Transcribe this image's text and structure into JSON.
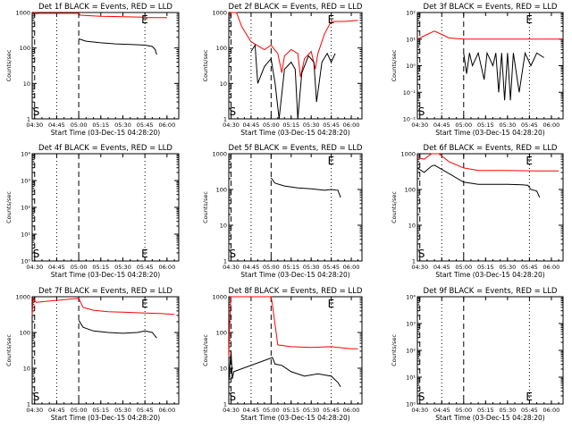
{
  "chart_data": [
    {
      "type": "line",
      "title": "Det 1f BLACK = Events, RED = LLD",
      "xlabel": "Start Time (03-Dec-15 04:28:20)",
      "ylabel": "Counts/sec",
      "x_ticks": [
        "04:30",
        "04:45",
        "05:00",
        "05:15",
        "05:30",
        "05:45",
        "06:00"
      ],
      "xlim": [
        "04:28:20",
        "06:08:00"
      ],
      "ylim": [
        1,
        1000
      ],
      "y_scale": "log",
      "y_ticks": [
        "1",
        "10",
        "100",
        "1000"
      ],
      "markers": {
        "S": "04:30",
        "E": "05:45"
      },
      "vlines_dashed": [
        "04:30",
        "05:00"
      ],
      "vlines_dotted": [
        "04:45",
        "05:45"
      ],
      "series": [
        {
          "color": "#ff0000",
          "points": [
            [
              "04:28:20",
              900
            ],
            [
              "04:30",
              1000
            ],
            [
              "04:31",
              920
            ],
            [
              "04:33",
              950
            ],
            [
              "05:00",
              950
            ],
            [
              "05:01",
              840
            ],
            [
              "05:15",
              780
            ],
            [
              "05:30",
              760
            ],
            [
              "05:45",
              740
            ],
            [
              "05:46",
              720
            ],
            [
              "06:00",
              720
            ]
          ]
        },
        {
          "color": "#000000",
          "points": [
            [
              "05:00",
              180
            ],
            [
              "05:05",
              155
            ],
            [
              "05:15",
              140
            ],
            [
              "05:25",
              130
            ],
            [
              "05:35",
              125
            ],
            [
              "05:45",
              120
            ],
            [
              "05:50",
              110
            ],
            [
              "05:52",
              90
            ],
            [
              "05:53",
              65
            ]
          ]
        }
      ]
    },
    {
      "type": "line",
      "title": "Det 2f BLACK = Events, RED = LLD",
      "xlabel": "Start Time (03-Dec-15 04:28:20)",
      "ylabel": "Counts/sec",
      "x_ticks": [
        "04:30",
        "04:45",
        "05:00",
        "05:15",
        "05:30",
        "05:45",
        "06:00"
      ],
      "xlim": [
        "04:28:20",
        "06:08:00"
      ],
      "ylim": [
        1,
        1000
      ],
      "y_scale": "log",
      "y_ticks": [
        "1",
        "10",
        "100",
        "1000"
      ],
      "markers": {
        "S": "04:30",
        "E": "05:45"
      },
      "vlines_dashed": [
        "04:30",
        "05:00"
      ],
      "vlines_dotted": [
        "04:45",
        "05:45"
      ],
      "series": [
        {
          "color": "#ff0000",
          "points": [
            [
              "04:28:20",
              800
            ],
            [
              "04:30",
              1000
            ],
            [
              "04:34",
              1000
            ],
            [
              "04:38",
              400
            ],
            [
              "04:45",
              150
            ],
            [
              "04:55",
              90
            ],
            [
              "05:00",
              120
            ],
            [
              "05:05",
              70
            ],
            [
              "05:08",
              20
            ],
            [
              "05:10",
              60
            ],
            [
              "05:15",
              90
            ],
            [
              "05:20",
              70
            ],
            [
              "05:22",
              15
            ],
            [
              "05:25",
              50
            ],
            [
              "05:30",
              80
            ],
            [
              "05:33",
              25
            ],
            [
              "05:35",
              70
            ],
            [
              "05:40",
              250
            ],
            [
              "05:45",
              560
            ],
            [
              "05:55",
              560
            ],
            [
              "06:05",
              600
            ]
          ]
        },
        {
          "color": "#000000",
          "points": [
            [
              "04:45",
              80
            ],
            [
              "04:48",
              120
            ],
            [
              "04:50",
              10
            ],
            [
              "04:55",
              30
            ],
            [
              "05:00",
              50
            ],
            [
              "05:03",
              10
            ],
            [
              "05:06",
              1
            ],
            [
              "05:10",
              25
            ],
            [
              "05:15",
              40
            ],
            [
              "05:18",
              25
            ],
            [
              "05:20",
              1
            ],
            [
              "05:23",
              20
            ],
            [
              "05:28",
              60
            ],
            [
              "05:32",
              40
            ],
            [
              "05:34",
              3
            ],
            [
              "05:38",
              40
            ],
            [
              "05:42",
              70
            ],
            [
              "05:45",
              40
            ],
            [
              "05:48",
              70
            ]
          ]
        }
      ]
    },
    {
      "type": "line",
      "title": "Det 3f BLACK = Events, RED = LLD",
      "xlabel": "Start Time (03-Dec-15 04:28:20)",
      "ylabel": "Counts/sec",
      "x_ticks": [
        "04:30",
        "04:45",
        "05:00",
        "05:15",
        "05:30",
        "05:45",
        "06:00"
      ],
      "xlim": [
        "04:28:20",
        "06:08:00"
      ],
      "ylim": [
        0.01,
        100
      ],
      "y_scale": "log",
      "y_ticks": [
        "10⁻²",
        "10⁻¹",
        "10⁰",
        "10¹",
        "10²"
      ],
      "markers": {
        "S": "04:30",
        "E": "05:45"
      },
      "vlines_dashed": [
        "04:30",
        "05:00"
      ],
      "vlines_dotted": [
        "04:45",
        "05:45"
      ],
      "series": [
        {
          "color": "#ff0000",
          "points": [
            [
              "04:28:20",
              10
            ],
            [
              "04:35",
              15
            ],
            [
              "04:40",
              20
            ],
            [
              "04:45",
              15
            ],
            [
              "04:50",
              11
            ],
            [
              "05:00",
              10
            ],
            [
              "06:08:00",
              10
            ]
          ]
        },
        {
          "color": "#000000",
          "points": [
            [
              "05:00",
              3
            ],
            [
              "05:02",
              0.5
            ],
            [
              "05:04",
              3
            ],
            [
              "05:06",
              1
            ],
            [
              "05:10",
              3
            ],
            [
              "05:14",
              0.3
            ],
            [
              "05:16",
              3
            ],
            [
              "05:20",
              1
            ],
            [
              "05:22",
              3
            ],
            [
              "05:24",
              0.1
            ],
            [
              "05:26",
              3
            ],
            [
              "05:28",
              0.05
            ],
            [
              "05:30",
              3
            ],
            [
              "05:32",
              0.05
            ],
            [
              "05:34",
              3
            ],
            [
              "05:38",
              0.1
            ],
            [
              "05:42",
              3
            ],
            [
              "05:46",
              1
            ],
            [
              "05:50",
              3
            ],
            [
              "05:55",
              2
            ]
          ]
        }
      ]
    },
    {
      "type": "line",
      "title": "Det 4f BLACK = Events, RED = LLD",
      "xlabel": "Start Time (03-Dec-15 04:28:20)",
      "ylabel": "Counts/sec",
      "x_ticks": [
        "04:30",
        "04:45",
        "05:00",
        "05:15",
        "05:30",
        "05:45",
        "06:00"
      ],
      "xlim": [
        "04:28:20",
        "06:08:00"
      ],
      "ylim": [
        1,
        10000
      ],
      "y_scale": "log",
      "y_ticks": [
        "10⁰",
        "10¹",
        "10²",
        "10³",
        "10⁴"
      ],
      "markers": {
        "S": "04:30",
        "E": "05:45"
      },
      "vlines_dashed": [
        "04:30",
        "05:00"
      ],
      "vlines_dotted": [
        "04:45",
        "05:45"
      ],
      "series": []
    },
    {
      "type": "line",
      "title": "Det 5f BLACK = Events, RED = LLD",
      "xlabel": "Start Time (03-Dec-15 04:28:20)",
      "ylabel": "Counts/sec",
      "x_ticks": [
        "04:30",
        "04:45",
        "05:00",
        "05:15",
        "05:30",
        "05:45",
        "06:00"
      ],
      "xlim": [
        "04:28:20",
        "06:08:00"
      ],
      "ylim": [
        1,
        1000
      ],
      "y_scale": "log",
      "y_ticks": [
        "1",
        "10",
        "100",
        "1000"
      ],
      "markers": {
        "S": "04:30",
        "E": "05:45"
      },
      "vlines_dashed": [
        "04:30",
        "05:00"
      ],
      "vlines_dotted": [
        "04:45",
        "05:45"
      ],
      "series": [
        {
          "color": "#000000",
          "points": [
            [
              "05:00",
              210
            ],
            [
              "05:03",
              150
            ],
            [
              "05:10",
              125
            ],
            [
              "05:20",
              110
            ],
            [
              "05:30",
              105
            ],
            [
              "05:40",
              95
            ],
            [
              "05:45",
              100
            ],
            [
              "05:50",
              95
            ],
            [
              "05:52",
              60
            ]
          ]
        }
      ]
    },
    {
      "type": "line",
      "title": "Det 6f BLACK = Events, RED = LLD",
      "xlabel": "Start Time (03-Dec-15 04:28:20)",
      "ylabel": "Counts/sec",
      "x_ticks": [
        "04:30",
        "04:45",
        "05:00",
        "05:15",
        "05:30",
        "05:45",
        "06:00"
      ],
      "xlim": [
        "04:28:20",
        "06:08:00"
      ],
      "ylim": [
        1,
        1000
      ],
      "y_scale": "log",
      "y_ticks": [
        "1",
        "10",
        "100",
        "1000"
      ],
      "markers": {
        "S": "04:30",
        "E": "05:45"
      },
      "vlines_dashed": [
        "04:30",
        "05:00"
      ],
      "vlines_dotted": [
        "04:45",
        "05:45"
      ],
      "series": [
        {
          "color": "#ff0000",
          "points": [
            [
              "04:28:20",
              800
            ],
            [
              "04:33",
              700
            ],
            [
              "04:38",
              1000
            ],
            [
              "04:43",
              1000
            ],
            [
              "04:50",
              600
            ],
            [
              "05:00",
              400
            ],
            [
              "05:10",
              340
            ],
            [
              "05:30",
              340
            ],
            [
              "05:50",
              330
            ],
            [
              "06:05",
              330
            ]
          ]
        },
        {
          "color": "#000000",
          "points": [
            [
              "04:28:20",
              400
            ],
            [
              "04:33",
              300
            ],
            [
              "04:38",
              450
            ],
            [
              "04:40",
              480
            ],
            [
              "05:00",
              160
            ],
            [
              "05:10",
              140
            ],
            [
              "05:30",
              140
            ],
            [
              "05:40",
              135
            ],
            [
              "05:44",
              130
            ],
            [
              "05:46",
              100
            ],
            [
              "05:50",
              90
            ],
            [
              "05:52",
              60
            ]
          ]
        }
      ]
    },
    {
      "type": "line",
      "title": "Det 7f BLACK = Events, RED = LLD",
      "xlabel": "Start Time (03-Dec-15 04:28:20)",
      "ylabel": "Counts/sec",
      "x_ticks": [
        "04:30",
        "04:45",
        "05:00",
        "05:15",
        "05:30",
        "05:45",
        "06:00"
      ],
      "xlim": [
        "04:28:20",
        "06:08:00"
      ],
      "ylim": [
        1,
        1000
      ],
      "y_scale": "log",
      "y_ticks": [
        "1",
        "10",
        "100",
        "1000"
      ],
      "markers": {
        "S": "04:30",
        "E": "05:45"
      },
      "vlines_dashed": [
        "04:30",
        "05:00"
      ],
      "vlines_dotted": [
        "04:45",
        "05:45"
      ],
      "series": [
        {
          "color": "#ff0000",
          "points": [
            [
              "04:28:20",
              300
            ],
            [
              "04:29",
              900
            ],
            [
              "04:31",
              700
            ],
            [
              "05:00",
              900
            ],
            [
              "05:03",
              500
            ],
            [
              "05:10",
              420
            ],
            [
              "05:20",
              380
            ],
            [
              "05:30",
              370
            ],
            [
              "05:45",
              350
            ],
            [
              "05:55",
              340
            ],
            [
              "06:05",
              320
            ]
          ]
        },
        {
          "color": "#000000",
          "points": [
            [
              "05:00",
              220
            ],
            [
              "05:03",
              140
            ],
            [
              "05:10",
              110
            ],
            [
              "05:20",
              100
            ],
            [
              "05:30",
              95
            ],
            [
              "05:40",
              100
            ],
            [
              "05:45",
              110
            ],
            [
              "05:50",
              100
            ],
            [
              "05:53",
              70
            ]
          ]
        }
      ]
    },
    {
      "type": "line",
      "title": "Det 8f BLACK = Events, RED = LLD",
      "xlabel": "Start Time (03-Dec-15 04:28:20)",
      "ylabel": "Counts/sec",
      "x_ticks": [
        "04:30",
        "04:45",
        "05:00",
        "05:15",
        "05:30",
        "05:45",
        "06:00"
      ],
      "xlim": [
        "04:28:20",
        "06:08:00"
      ],
      "ylim": [
        1,
        1000
      ],
      "y_scale": "log",
      "y_ticks": [
        "1",
        "10",
        "100",
        "1000"
      ],
      "markers": {
        "S": "04:30",
        "E": "05:45"
      },
      "vlines_dashed": [
        "04:30",
        "05:00"
      ],
      "vlines_dotted": [
        "04:45",
        "05:45"
      ],
      "series": [
        {
          "color": "#ff0000",
          "points": [
            [
              "04:28:20",
              20
            ],
            [
              "04:29",
              200
            ],
            [
              "04:30",
              1000
            ],
            [
              "04:32",
              1000
            ],
            [
              "05:00",
              1000
            ],
            [
              "05:01",
              600
            ],
            [
              "05:05",
              45
            ],
            [
              "05:15",
              40
            ],
            [
              "05:30",
              38
            ],
            [
              "05:45",
              40
            ],
            [
              "06:00",
              35
            ],
            [
              "06:05",
              35
            ]
          ]
        },
        {
          "color": "#000000",
          "points": [
            [
              "04:28:20",
              4
            ],
            [
              "04:29",
              10
            ],
            [
              "04:30",
              30
            ],
            [
              "04:31",
              5
            ],
            [
              "04:32",
              8
            ],
            [
              "05:01",
              20
            ],
            [
              "05:03",
              13
            ],
            [
              "05:08",
              12
            ],
            [
              "05:15",
              8
            ],
            [
              "05:25",
              6
            ],
            [
              "05:35",
              7
            ],
            [
              "05:45",
              6
            ],
            [
              "05:50",
              4
            ],
            [
              "05:52",
              3
            ]
          ]
        }
      ]
    },
    {
      "type": "line",
      "title": "Det 9f BLACK = Events, RED = LLD",
      "xlabel": "Start Time (03-Dec-15 04:28:20)",
      "ylabel": "Counts/sec",
      "x_ticks": [
        "04:30",
        "04:45",
        "05:00",
        "05:15",
        "05:30",
        "05:45",
        "06:00"
      ],
      "xlim": [
        "04:28:20",
        "06:08:00"
      ],
      "ylim": [
        1,
        10000
      ],
      "y_scale": "log",
      "y_ticks": [
        "10⁰",
        "10¹",
        "10²",
        "10³",
        "10⁴"
      ],
      "markers": {
        "S": "04:30",
        "E": "05:45"
      },
      "vlines_dashed": [
        "04:30",
        "05:00"
      ],
      "vlines_dotted": [
        "04:45",
        "05:45"
      ],
      "series": []
    }
  ]
}
